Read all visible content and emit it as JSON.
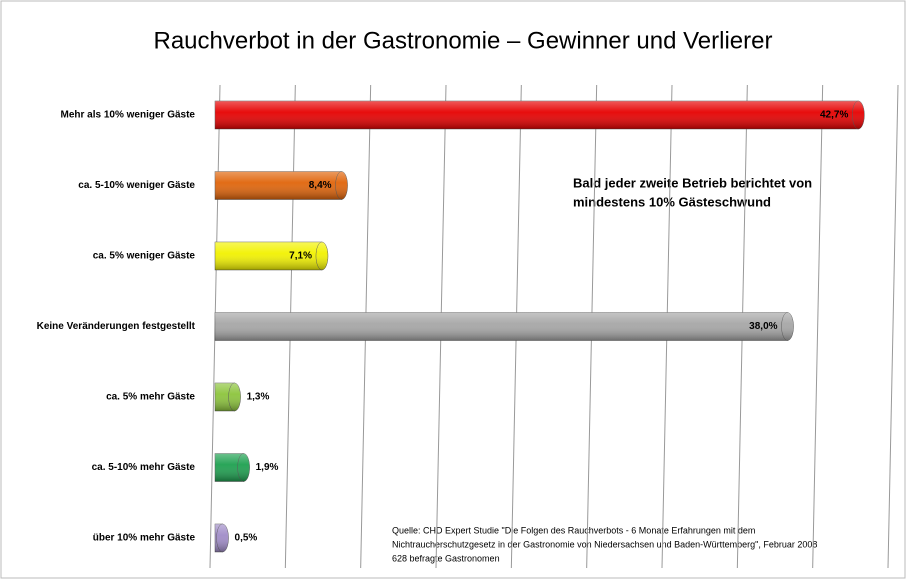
{
  "chart_data": {
    "type": "bar",
    "orientation": "horizontal",
    "title": "Rauchverbot in der Gastronomie – Gewinner und Verlierer",
    "categories": [
      "Mehr als 10% weniger Gäste",
      "ca. 5-10% weniger Gäste",
      "ca. 5% weniger Gäste",
      "Keine Veränderungen festgestellt",
      "ca. 5% mehr Gäste",
      "ca. 5-10% mehr Gäste",
      "über 10% mehr Gäste"
    ],
    "values": [
      42.7,
      8.4,
      7.1,
      38.0,
      1.3,
      1.9,
      0.5
    ],
    "value_labels": [
      "42,7%",
      "8,4%",
      "7,1%",
      "38,0%",
      "1,3%",
      "1,9%",
      "0,5%"
    ],
    "colors": [
      "#e60000",
      "#e0640a",
      "#f2f200",
      "#a6a6a6",
      "#8cc43c",
      "#1ea050",
      "#a08cc8"
    ],
    "xlim": [
      0,
      45
    ],
    "xticks": [
      0,
      5,
      10,
      15,
      20,
      25,
      30,
      35,
      40,
      45
    ],
    "grid": true,
    "annotation": [
      "Bald jeder zweite Betrieb berichtet von",
      "mindestens 10% Gästeschwund"
    ],
    "source": [
      "Quelle: CHD Expert Studie \"Die Folgen des Rauchverbots - 6 Monate Erfahrungen mit dem",
      "Nichtraucherschutzgesetz in der Gastronomie von Niedersachsen und Baden-Württemberg\", Februar 2008",
      "628 befragte Gastronomen"
    ]
  }
}
